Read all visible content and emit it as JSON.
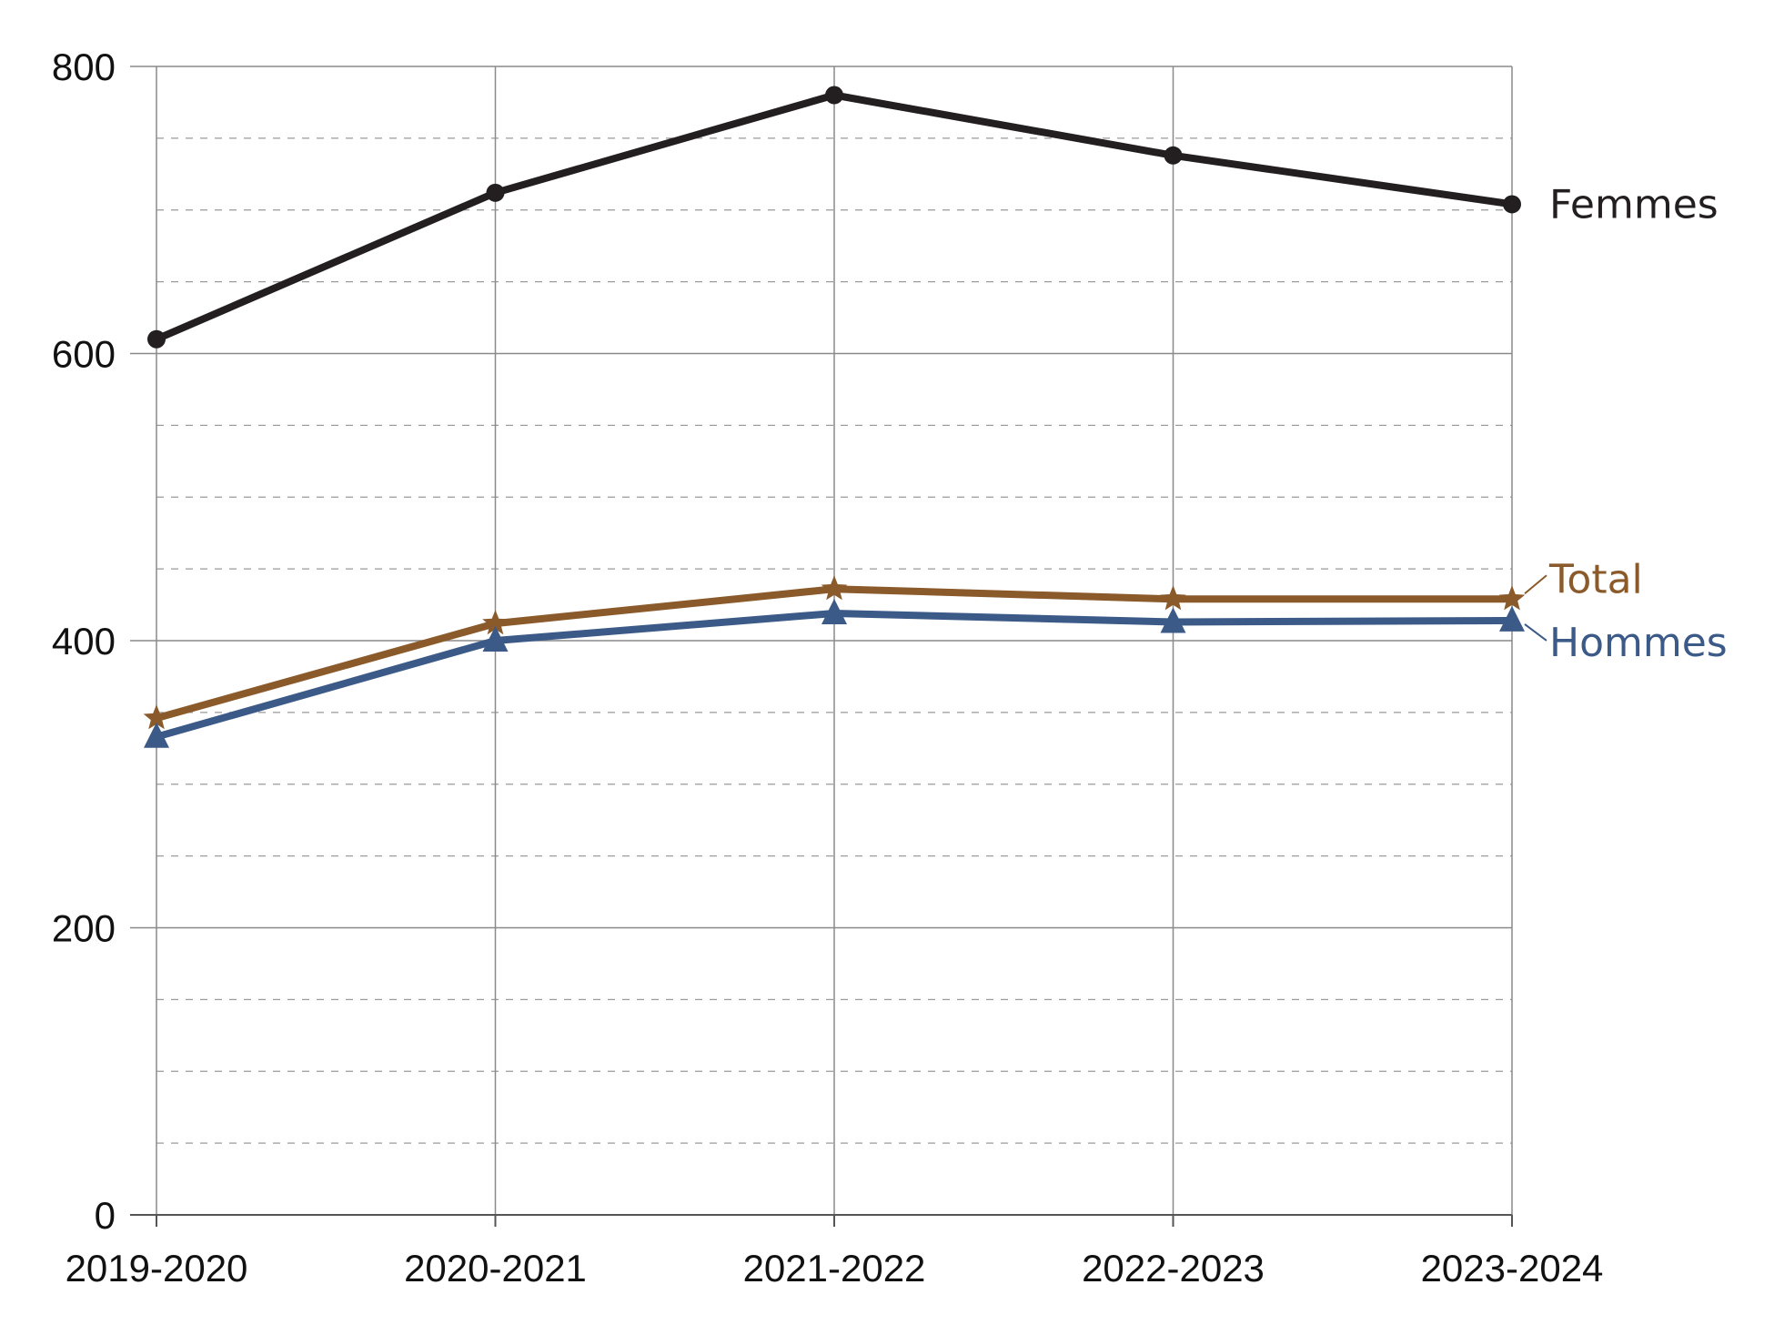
{
  "chart_data": {
    "type": "line",
    "title": "",
    "xlabel": "",
    "ylabel": "",
    "categories": [
      "2019-2020",
      "2020-2021",
      "2021-2022",
      "2022-2023",
      "2023-2024"
    ],
    "ylim": [
      0,
      800
    ],
    "y_major_ticks": [
      0,
      200,
      400,
      600,
      800
    ],
    "y_minor_step": 50,
    "grid": true,
    "legend": "inline labels at line ends",
    "series": [
      {
        "name": "Femmes",
        "color": "#231f20",
        "marker": "circle",
        "values": [
          610,
          712,
          780,
          738,
          704
        ]
      },
      {
        "name": "Total",
        "color": "#8b5a2b",
        "marker": "star",
        "values": [
          346,
          412,
          436,
          429,
          429
        ]
      },
      {
        "name": "Hommes",
        "color": "#3c5a87",
        "marker": "triangle",
        "values": [
          333,
          400,
          419,
          413,
          414
        ]
      }
    ]
  }
}
